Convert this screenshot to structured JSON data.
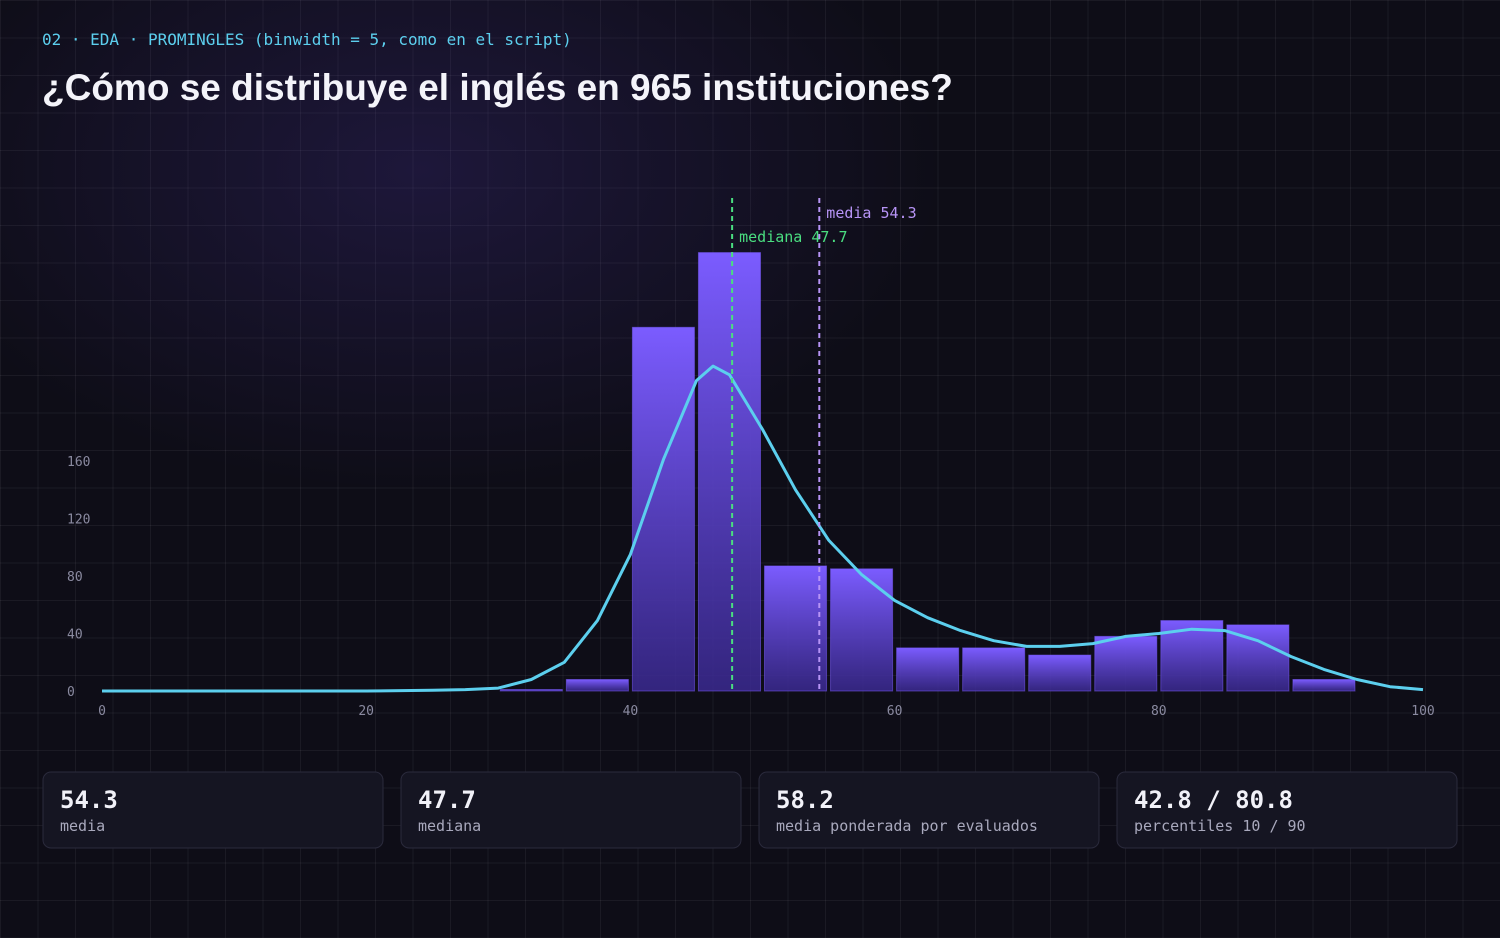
{
  "header": {
    "kicker": "02 · EDA · PROMINGLES (binwidth = 5, como en el script)",
    "title": "¿Cómo se distribuye el inglés en 965 instituciones?"
  },
  "chart_data": {
    "type": "histogram",
    "bins": [
      30,
      35,
      40,
      45,
      50,
      55,
      60,
      65,
      70,
      75,
      80,
      85,
      90,
      95
    ],
    "values": [
      1,
      8,
      253,
      305,
      87,
      85,
      30,
      30,
      25,
      38,
      49,
      46,
      8
    ],
    "color": "#7b5cff",
    "xlim": [
      0,
      100
    ],
    "xticks": [
      0,
      20,
      40,
      60,
      80,
      100
    ],
    "ylim": [
      0,
      340
    ],
    "yticks": [
      0,
      40,
      80,
      120,
      160
    ],
    "density": {
      "color": "#5ccfee",
      "x": [
        0,
        5,
        10,
        15,
        20,
        25,
        27.5,
        30,
        32.5,
        35,
        37.5,
        40,
        42.5,
        45,
        46.25,
        47.5,
        50,
        52.5,
        55,
        57.5,
        60,
        62.5,
        65,
        67.5,
        70,
        72.5,
        75,
        77.5,
        80,
        82.5,
        85,
        87.5,
        90,
        92.5,
        95,
        97.5,
        100
      ],
      "y": [
        0,
        0,
        0,
        0,
        0,
        0.5,
        1,
        2,
        8,
        20,
        49,
        95,
        161,
        216,
        226,
        220,
        182,
        140,
        105,
        81,
        63,
        51,
        42,
        35,
        31,
        31,
        33,
        38,
        40,
        43,
        42,
        35,
        24,
        15,
        8,
        3,
        1
      ]
    },
    "reference_lines": [
      {
        "label": "mediana 47.7",
        "value": 47.7,
        "color": "#4ade80"
      },
      {
        "label": "media 54.3",
        "value": 54.3,
        "color": "#b794f6"
      }
    ]
  },
  "stats": [
    {
      "value": "54.3",
      "label": "media"
    },
    {
      "value": "47.7",
      "label": "mediana"
    },
    {
      "value": "58.2",
      "label": "media ponderada por evaluados"
    },
    {
      "value": "42.8 / 80.8",
      "label": "percentiles 10 / 90"
    }
  ]
}
